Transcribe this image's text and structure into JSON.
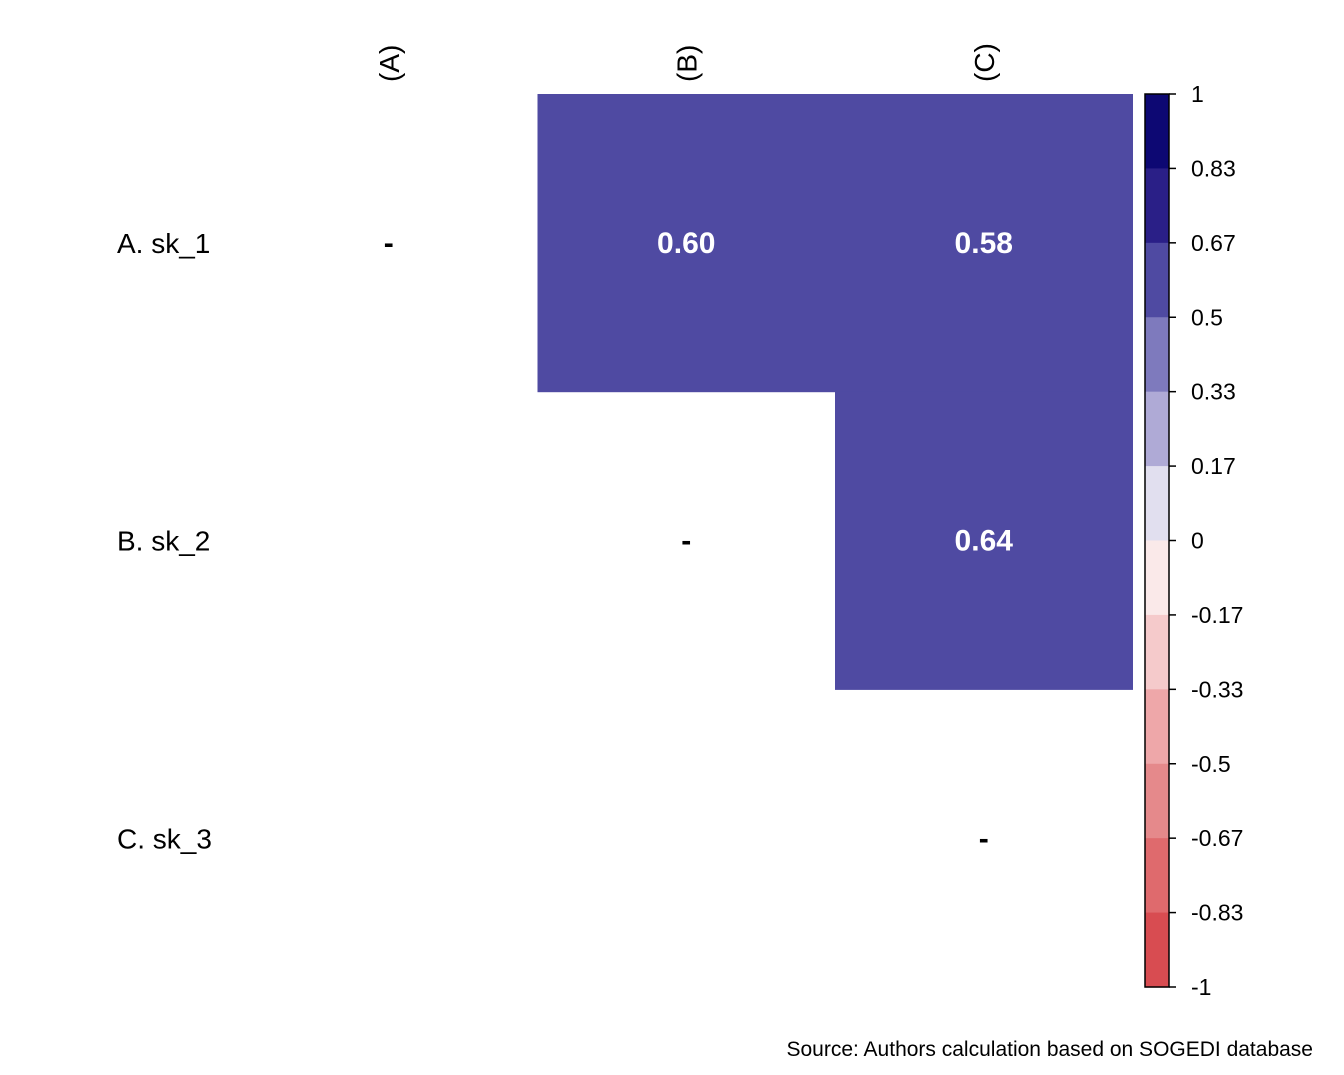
{
  "chart_data": {
    "type": "heatmap",
    "title": "",
    "row_labels": [
      "A. sk_1",
      "B. sk_2",
      "C. sk_3"
    ],
    "col_labels": [
      "(A)",
      "(B)",
      "(C)"
    ],
    "cells": [
      {
        "row": 0,
        "col": 0,
        "value": null,
        "label": "-"
      },
      {
        "row": 0,
        "col": 1,
        "value": 0.6,
        "label": "0.60"
      },
      {
        "row": 0,
        "col": 2,
        "value": 0.58,
        "label": "0.58"
      },
      {
        "row": 1,
        "col": 1,
        "value": null,
        "label": "-"
      },
      {
        "row": 1,
        "col": 2,
        "value": 0.64,
        "label": "0.64"
      },
      {
        "row": 2,
        "col": 2,
        "value": null,
        "label": "-"
      }
    ],
    "legend": {
      "position": "right",
      "range": [
        -1,
        1
      ],
      "tick_labels": [
        "1",
        "0.83",
        "0.67",
        "0.5",
        "0.33",
        "0.17",
        "0",
        "-0.17",
        "-0.33",
        "-0.5",
        "-0.67",
        "-0.83",
        "-1"
      ],
      "bins_top_to_bottom": [
        "#0d0873",
        "#2a1f87",
        "#4f4aa2",
        "#7e7abd",
        "#afaad6",
        "#e1dfef",
        "#fae9e9",
        "#f5cacb",
        "#eea7a9",
        "#e5898b",
        "#df6a6d",
        "#d84c51"
      ]
    },
    "cell_color": "#4f4aa2",
    "caption": "Source: Authors calculation based on SOGEDI database"
  }
}
